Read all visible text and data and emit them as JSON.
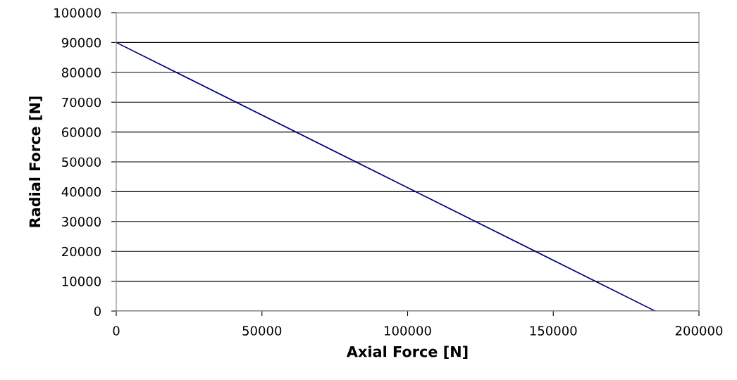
{
  "chart_data": {
    "type": "line",
    "xlabel": "Axial Force [N]",
    "ylabel": "Radial Force [N]",
    "x": [
      0,
      185000
    ],
    "series": [
      {
        "color": "#000080",
        "values": [
          90000,
          0
        ]
      }
    ],
    "xlim": [
      0,
      200000
    ],
    "xticks": [
      0,
      50000,
      100000,
      150000,
      200000
    ],
    "ylim": [
      0,
      100000
    ],
    "yticks": [
      0,
      10000,
      20000,
      30000,
      40000,
      50000,
      60000,
      70000,
      80000,
      90000,
      100000
    ],
    "grid": "y",
    "marker": "none",
    "line_style": "solid"
  }
}
